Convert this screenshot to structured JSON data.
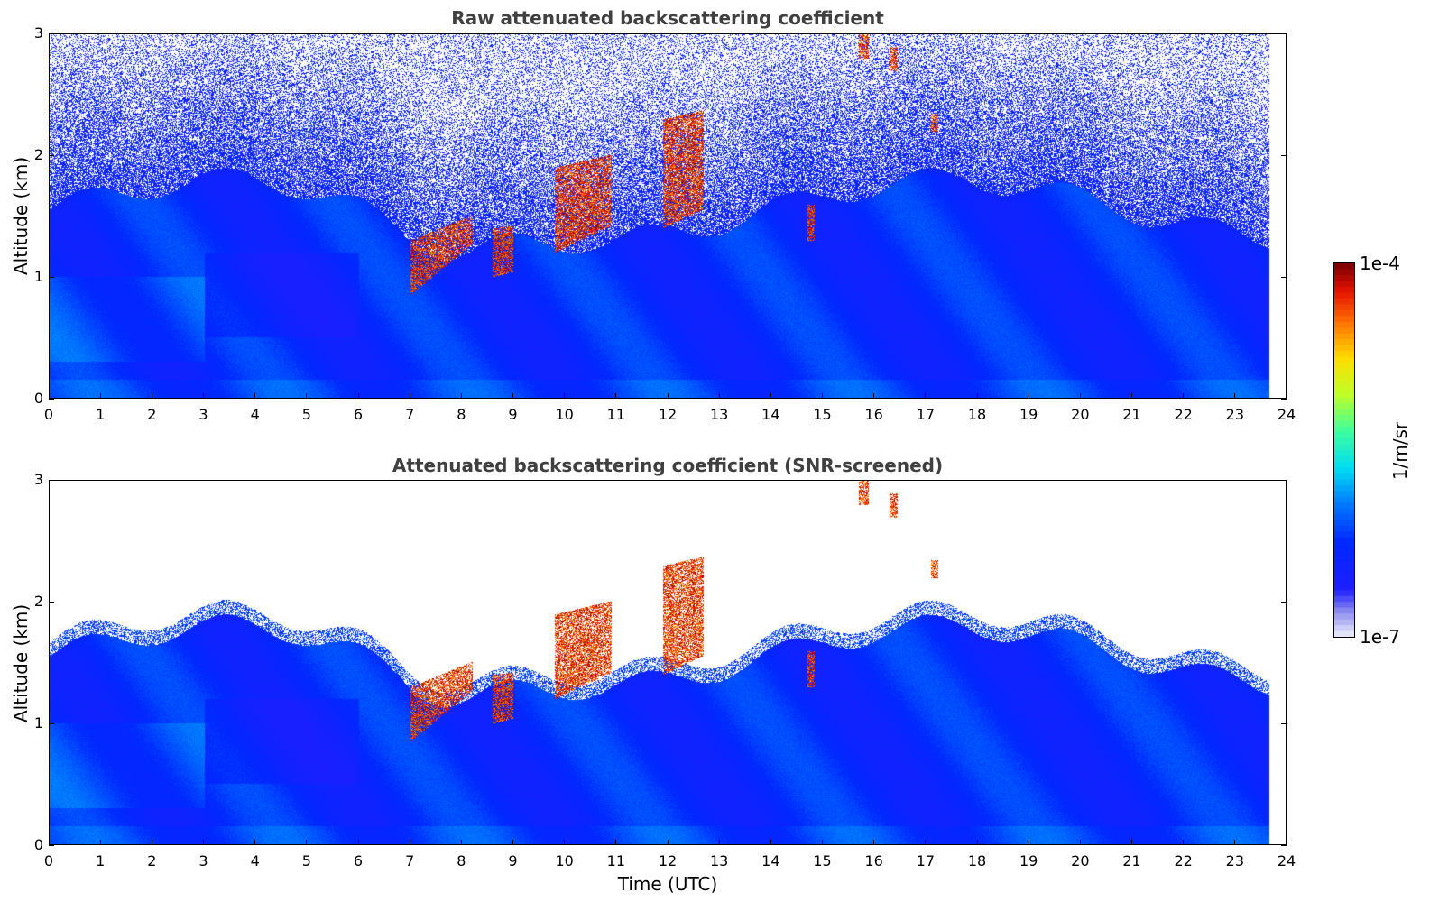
{
  "chart_data": [
    {
      "type": "heatmap",
      "title": "Raw attenuated backscattering coefficient",
      "xlabel": "",
      "ylabel": "Altitude (km)",
      "xlim": [
        0,
        24
      ],
      "ylim": [
        0,
        3
      ],
      "x_ticks": [
        "0",
        "1",
        "2",
        "3",
        "4",
        "5",
        "6",
        "7",
        "8",
        "9",
        "10",
        "11",
        "12",
        "13",
        "14",
        "15",
        "16",
        "17",
        "18",
        "19",
        "20",
        "21",
        "22",
        "23",
        "24"
      ],
      "y_ticks": [
        "0",
        "1",
        "2",
        "3"
      ],
      "data_time_end": 23.67,
      "screened": false
    },
    {
      "type": "heatmap",
      "title": "Attenuated backscattering coefficient (SNR-screened)",
      "xlabel": "Time (UTC)",
      "ylabel": "Altitude (km)",
      "xlim": [
        0,
        24
      ],
      "ylim": [
        0,
        3
      ],
      "x_ticks": [
        "0",
        "1",
        "2",
        "3",
        "4",
        "5",
        "6",
        "7",
        "8",
        "9",
        "10",
        "11",
        "12",
        "13",
        "14",
        "15",
        "16",
        "17",
        "18",
        "19",
        "20",
        "21",
        "22",
        "23",
        "24"
      ],
      "y_ticks": [
        "0",
        "1",
        "2",
        "3"
      ],
      "data_time_end": 23.67,
      "screened": true
    }
  ],
  "colorbar": {
    "label": "1/m/sr",
    "max_label": "1e-4",
    "min_label": "1e-7",
    "scale": "log",
    "colormap": "jet-like (white-lavender to dark red)"
  }
}
